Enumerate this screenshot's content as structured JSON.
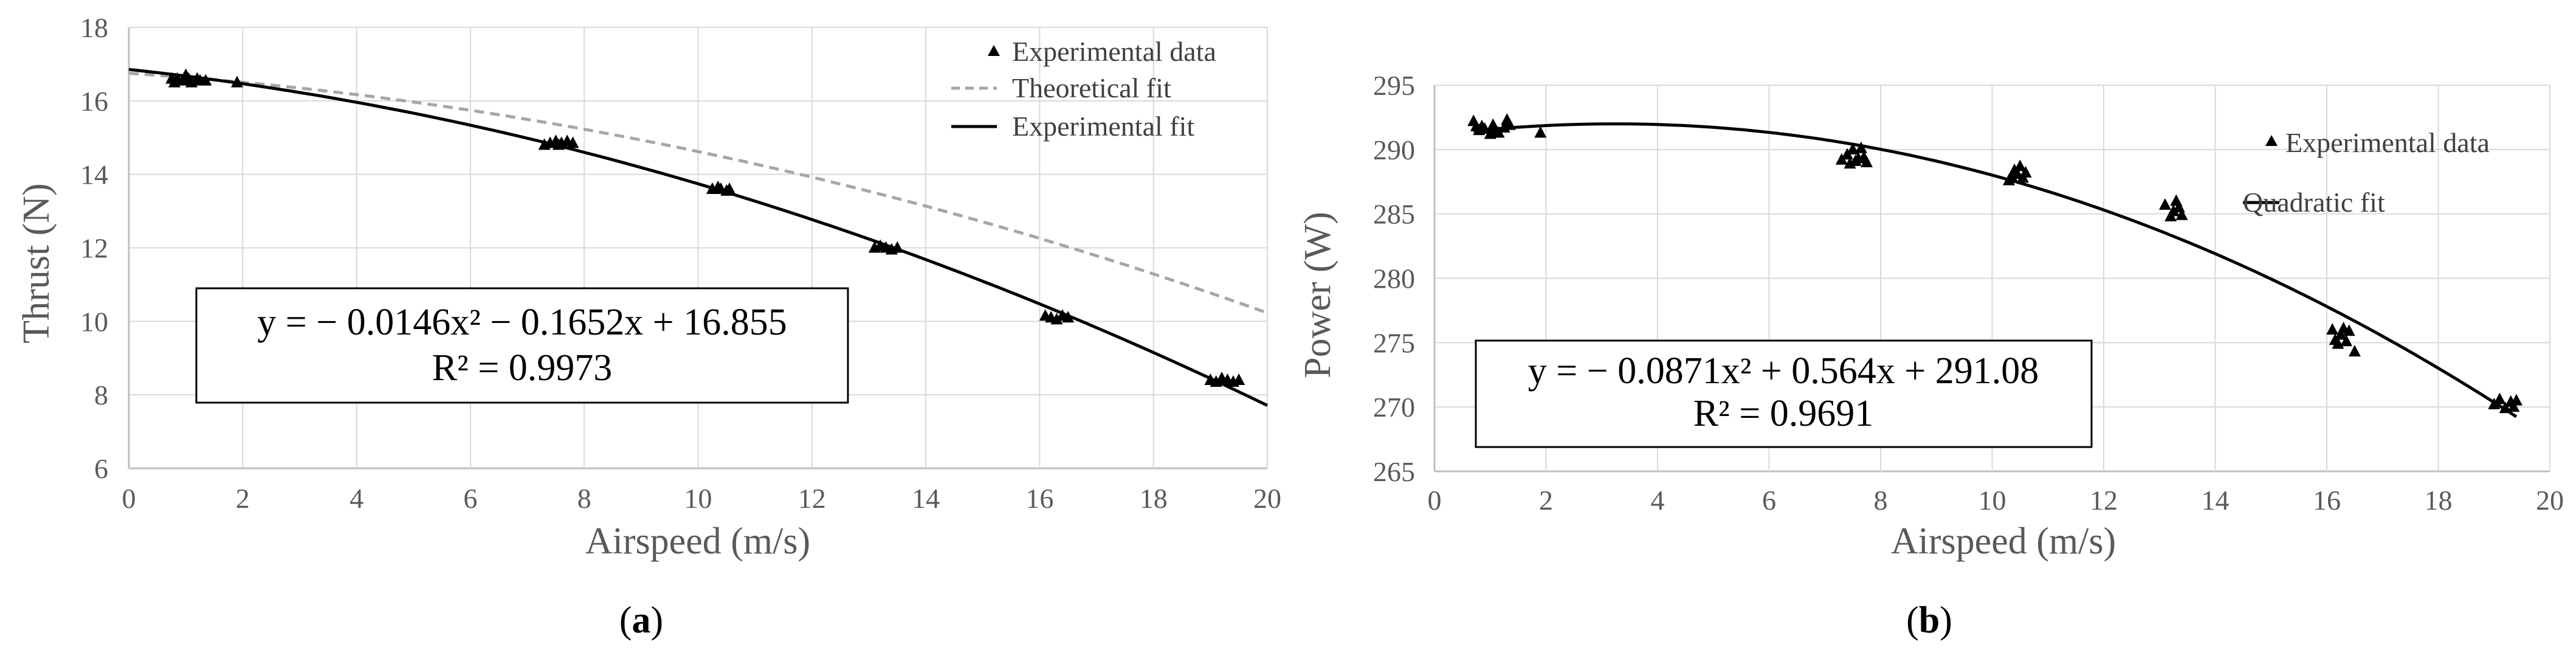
{
  "colors": {
    "grid": "#d9d9d9",
    "axis": "#bfbfbf",
    "tick_text": "#595959",
    "data": "#000000",
    "theoretical": "#a6a6a6"
  },
  "chart_data": [
    {
      "id": "a",
      "type": "scatter",
      "panel_label": "a",
      "xlabel": "Airspeed (m/s)",
      "ylabel": "Thrust (N)",
      "xlim": [
        0,
        20
      ],
      "ylim": [
        6,
        18
      ],
      "xticks": [
        0,
        2,
        4,
        6,
        8,
        10,
        12,
        14,
        16,
        18,
        20
      ],
      "yticks": [
        6,
        8,
        10,
        12,
        14,
        16,
        18
      ],
      "grid": true,
      "legend_position": "top-right",
      "legend": [
        "Experimental data",
        "Theoretical fit",
        "Experimental fit"
      ],
      "equation": "y = − 0.0146x² − 0.1652x + 16.855",
      "r_squared": "R² = 0.9973",
      "series": [
        {
          "name": "Experimental data",
          "kind": "markers",
          "x": [
            0.75,
            0.8,
            0.85,
            0.95,
            1.0,
            1.05,
            1.1,
            1.2,
            1.25,
            1.35,
            1.9,
            7.3,
            7.4,
            7.5,
            7.55,
            7.6,
            7.7,
            7.8,
            10.25,
            10.35,
            10.4,
            10.5,
            10.55,
            13.1,
            13.2,
            13.3,
            13.4,
            13.5,
            16.1,
            16.2,
            16.3,
            16.4,
            16.5,
            19.0,
            19.1,
            19.2,
            19.3,
            19.4,
            19.5
          ],
          "y": [
            16.6,
            16.5,
            16.6,
            16.55,
            16.7,
            16.6,
            16.5,
            16.6,
            16.55,
            16.55,
            16.5,
            14.8,
            14.85,
            14.9,
            14.8,
            14.85,
            14.9,
            14.85,
            13.6,
            13.65,
            13.6,
            13.55,
            13.6,
            12.0,
            12.05,
            12.0,
            11.95,
            12.0,
            10.15,
            10.1,
            10.05,
            10.15,
            10.1,
            8.4,
            8.35,
            8.45,
            8.4,
            8.35,
            8.4
          ]
        },
        {
          "name": "Theoretical fit",
          "kind": "dashed-line",
          "function": "theoretical",
          "x_range": [
            0,
            20
          ]
        },
        {
          "name": "Experimental fit",
          "kind": "line",
          "coefficients": [
            -0.0146,
            -0.1652,
            16.855
          ],
          "x_range": [
            0,
            20
          ]
        }
      ]
    },
    {
      "id": "b",
      "type": "scatter",
      "panel_label": "b",
      "xlabel": "Airspeed (m/s)",
      "ylabel": "Power (W)",
      "xlim": [
        0,
        20
      ],
      "ylim": [
        265,
        295
      ],
      "xticks": [
        0,
        2,
        4,
        6,
        8,
        10,
        12,
        14,
        16,
        18,
        20
      ],
      "yticks": [
        265,
        270,
        275,
        280,
        285,
        290,
        295
      ],
      "grid": true,
      "legend_position": "right",
      "legend": [
        "Experimental data",
        "Quadratic fit"
      ],
      "equation": "y = − 0.0871x² + 0.564x + 291.08",
      "r_squared": "R² = 0.9691",
      "series": [
        {
          "name": "Experimental data",
          "kind": "markers",
          "x": [
            0.7,
            0.75,
            0.8,
            0.85,
            0.9,
            1.0,
            1.05,
            1.1,
            1.15,
            1.25,
            1.3,
            1.35,
            1.9,
            7.3,
            7.4,
            7.45,
            7.5,
            7.55,
            7.6,
            7.65,
            7.7,
            7.75,
            10.3,
            10.35,
            10.4,
            10.45,
            10.5,
            10.55,
            10.6,
            13.1,
            13.2,
            13.25,
            13.3,
            13.35,
            13.4,
            16.1,
            16.15,
            16.2,
            16.25,
            16.3,
            16.35,
            16.4,
            16.5,
            19.0,
            19.1,
            19.2,
            19.3,
            19.35,
            19.4
          ],
          "y": [
            292.2,
            291.8,
            291.5,
            291.8,
            291.6,
            291.2,
            291.9,
            291.5,
            291.3,
            291.7,
            292.3,
            291.9,
            291.3,
            289.2,
            289.6,
            288.9,
            290.0,
            289.1,
            289.3,
            290.1,
            289.4,
            289.0,
            287.6,
            287.9,
            288.4,
            288.1,
            288.7,
            287.8,
            288.2,
            285.7,
            284.8,
            285.2,
            286.0,
            285.5,
            284.9,
            276.0,
            275.2,
            274.9,
            275.6,
            276.1,
            275.1,
            275.9,
            274.3,
            270.2,
            270.6,
            269.9,
            270.4,
            270.0,
            270.5
          ]
        },
        {
          "name": "Quadratic fit",
          "kind": "line",
          "coefficients": [
            -0.0871,
            0.564,
            291.08
          ],
          "x_range": [
            0.7,
            19.4
          ]
        }
      ]
    }
  ]
}
